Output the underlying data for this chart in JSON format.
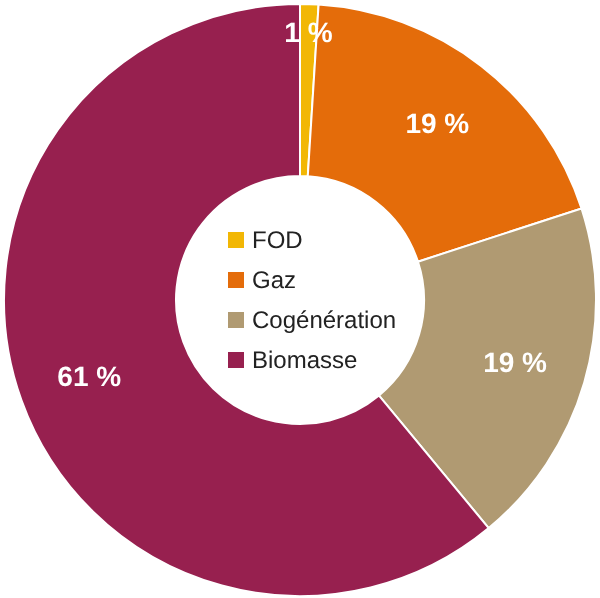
{
  "chart_data": {
    "type": "donut",
    "categories": [
      "FOD",
      "Gaz",
      "Cogénération",
      "Biomasse"
    ],
    "values": [
      1,
      19,
      19,
      61
    ],
    "colors": [
      "#f2b705",
      "#e46c0a",
      "#b09a72",
      "#97204f"
    ],
    "value_labels": [
      "1 %",
      "19 %",
      "19 %",
      "61 %"
    ],
    "legend": "center"
  }
}
